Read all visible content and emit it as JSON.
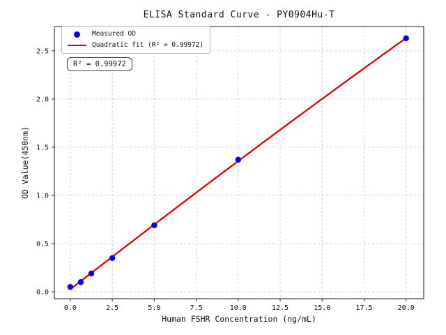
{
  "chart_data": {
    "type": "scatter",
    "title": "ELISA Standard Curve - PY0904Hu-T",
    "xlabel": "Human FSHR Concentration (ng/mL)",
    "ylabel": "OD Value(450nm)",
    "x": [
      0,
      0.625,
      1.25,
      2.5,
      5,
      10,
      20
    ],
    "y": [
      0.05,
      0.1,
      0.19,
      0.35,
      0.69,
      1.37,
      2.63
    ],
    "series": [
      {
        "name": "Measured OD",
        "type": "scatter",
        "color": "#0000ee",
        "marker": "circle"
      },
      {
        "name": "Quadratic fit (R² = 0.99972)",
        "type": "line",
        "color": "#e50000"
      }
    ],
    "fit": {
      "type": "quadratic",
      "r_squared": "0.99972"
    },
    "annotation": "R² = 0.99972",
    "xlim": [
      -0.95,
      21.05
    ],
    "ylim": [
      -0.072,
      2.752
    ],
    "x_ticks": [
      {
        "value": 0,
        "label": "0.0"
      },
      {
        "value": 2.5,
        "label": "2.5"
      },
      {
        "value": 5,
        "label": "5.0"
      },
      {
        "value": 7.5,
        "label": "7.5"
      },
      {
        "value": 10,
        "label": "10.0"
      },
      {
        "value": 12.5,
        "label": "12.5"
      },
      {
        "value": 15,
        "label": "15.0"
      },
      {
        "value": 17.5,
        "label": "17.5"
      },
      {
        "value": 20,
        "label": "20.0"
      }
    ],
    "y_ticks": [
      {
        "value": 0,
        "label": "0.0"
      },
      {
        "value": 0.5,
        "label": "0.5"
      },
      {
        "value": 1,
        "label": "1.0"
      },
      {
        "value": 1.5,
        "label": "1.5"
      },
      {
        "value": 2,
        "label": "2.0"
      },
      {
        "value": 2.5,
        "label": "2.5"
      }
    ],
    "grid": true,
    "legend_position": "upper-left",
    "colors": {
      "marker": "#0000ee",
      "fit_line": "#e50000",
      "grid": "#c9c9c9",
      "axis": "#2b2b2b",
      "text": "#111111"
    }
  }
}
